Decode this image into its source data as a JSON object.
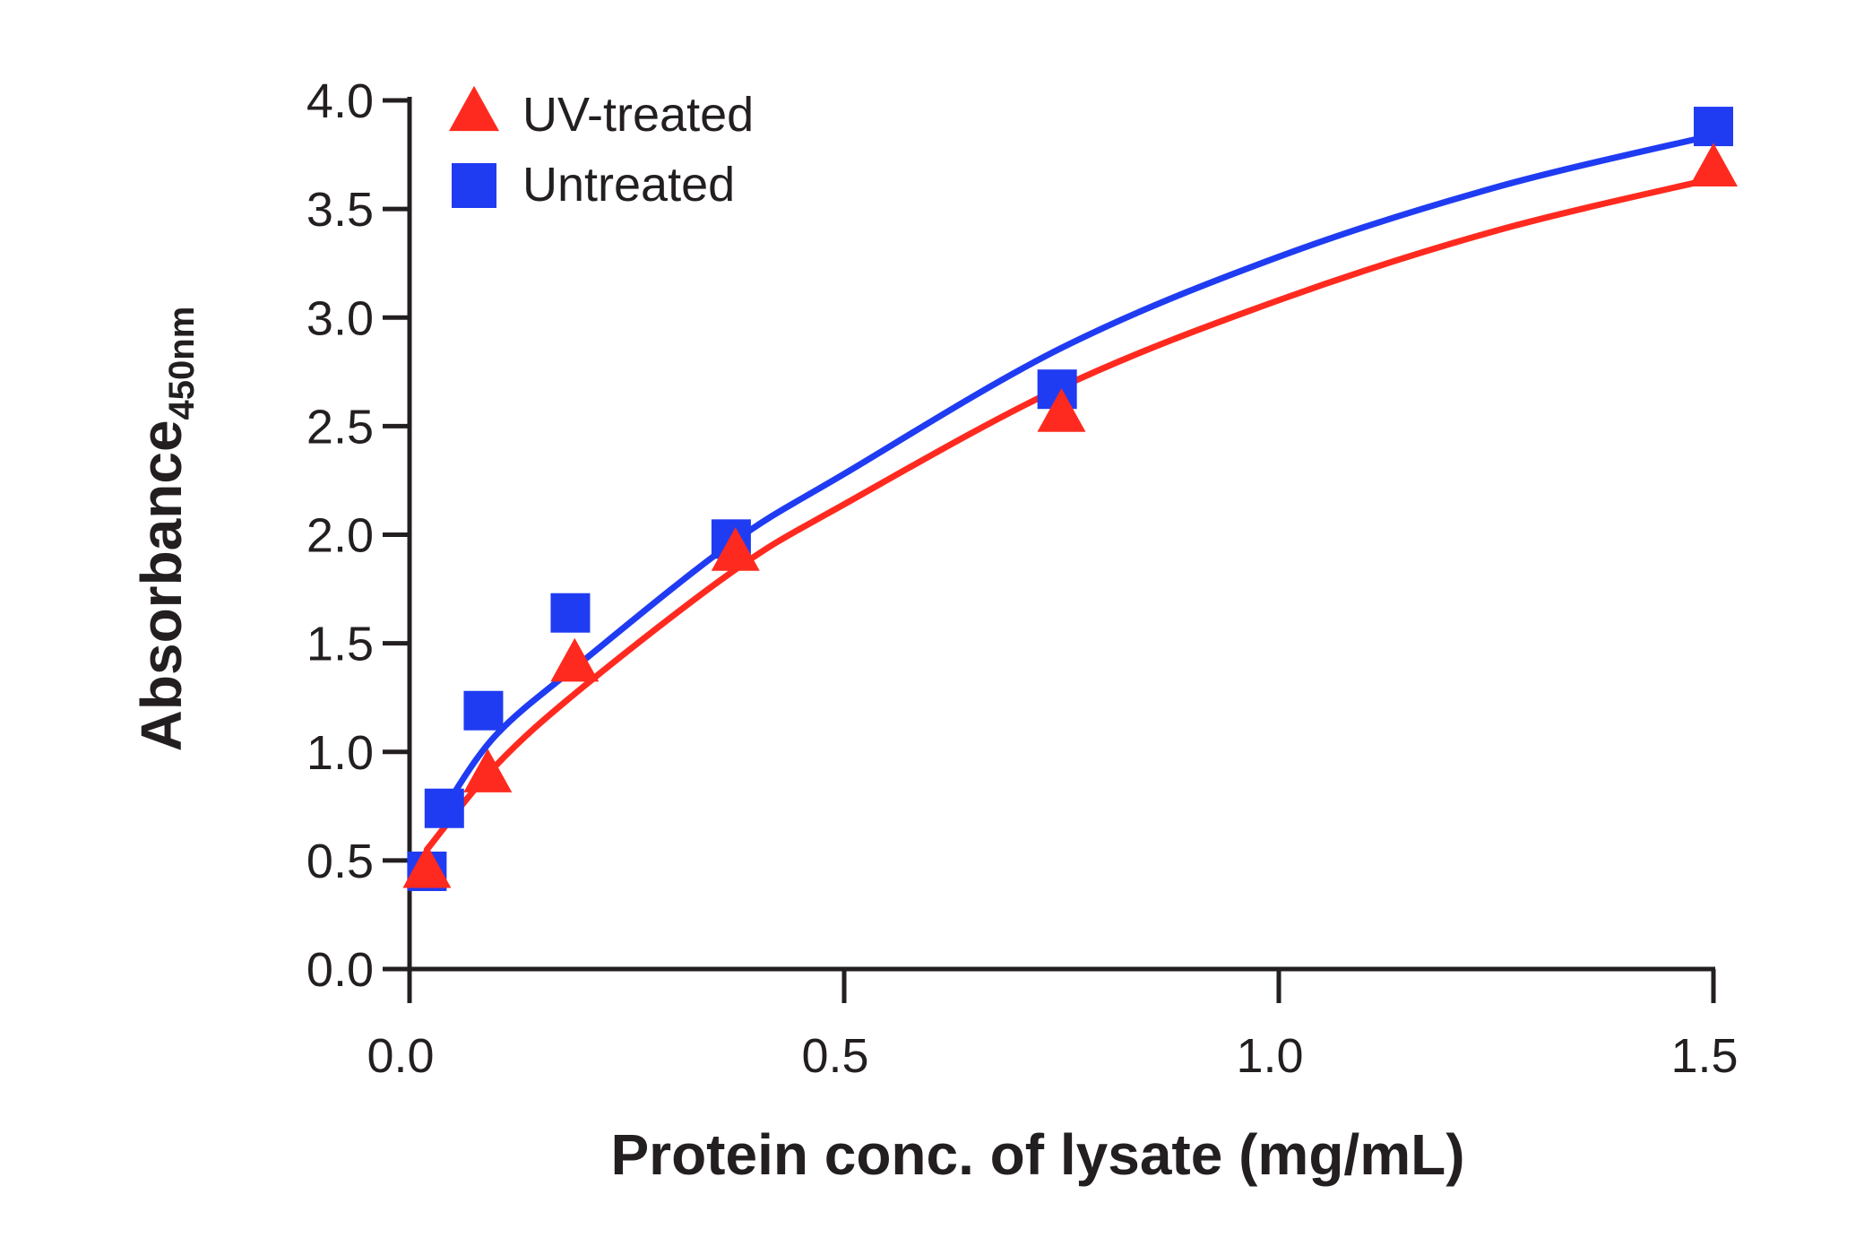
{
  "chart_data": {
    "type": "scatter",
    "xlabel": "Protein conc. of lysate (mg/mL)",
    "ylabel": "Absorbance",
    "ylabel_subscript": "450nm",
    "xlim": [
      0,
      1.5
    ],
    "ylim": [
      0,
      4.0
    ],
    "x_ticks": [
      "0.0",
      "0.5",
      "1.0",
      "1.5"
    ],
    "y_ticks": [
      "0.0",
      "0.5",
      "1.0",
      "1.5",
      "2.0",
      "2.5",
      "3.0",
      "3.5",
      "4.0"
    ],
    "legend_position": "top-left",
    "series": [
      {
        "name": "UV-treated",
        "marker": "triangle",
        "color": "#ff2a1f",
        "points": [
          [
            0.02,
            0.45
          ],
          [
            0.09,
            0.89
          ],
          [
            0.19,
            1.4
          ],
          [
            0.375,
            1.91
          ],
          [
            0.75,
            2.55
          ],
          [
            1.5,
            3.68
          ]
        ],
        "fit": [
          [
            0.02,
            0.55
          ],
          [
            0.1,
            0.94
          ],
          [
            0.2,
            1.3
          ],
          [
            0.375,
            1.84
          ],
          [
            0.5,
            2.14
          ],
          [
            0.75,
            2.68
          ],
          [
            1.0,
            3.08
          ],
          [
            1.25,
            3.4
          ],
          [
            1.5,
            3.64
          ]
        ]
      },
      {
        "name": "Untreated",
        "marker": "square",
        "color": "#1f3cf2",
        "points": [
          [
            0.02,
            0.45
          ],
          [
            0.04,
            0.74
          ],
          [
            0.085,
            1.19
          ],
          [
            0.185,
            1.64
          ],
          [
            0.37,
            1.98
          ],
          [
            0.745,
            2.67
          ],
          [
            1.5,
            3.88
          ]
        ],
        "fit": [
          [
            0.04,
            0.74
          ],
          [
            0.1,
            1.08
          ],
          [
            0.2,
            1.42
          ],
          [
            0.37,
            1.96
          ],
          [
            0.5,
            2.28
          ],
          [
            0.75,
            2.86
          ],
          [
            1.0,
            3.28
          ],
          [
            1.25,
            3.6
          ],
          [
            1.5,
            3.84
          ]
        ]
      }
    ]
  }
}
